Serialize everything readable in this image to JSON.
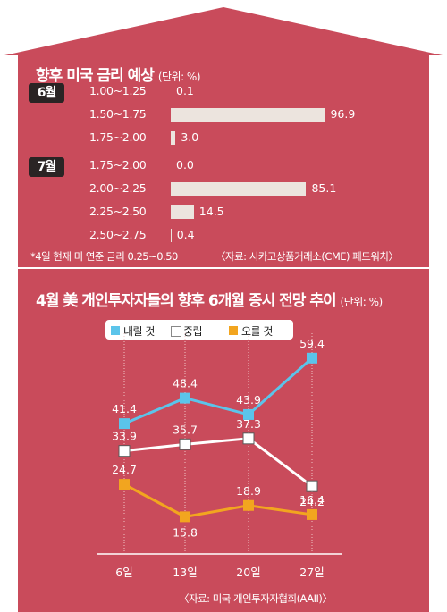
{
  "colors": {
    "background": "#c94b5b",
    "bar": "#ece4de",
    "series": [
      "#5bc4ea",
      "#ffffff",
      "#f2a51f"
    ]
  },
  "top_section": {
    "title": "향후 미국 금리 예상",
    "unit": "(단위: %)",
    "groups": [
      {
        "label": "6월",
        "rows": [
          {
            "range": "1.00~1.25",
            "value": 0.1,
            "value_label": "0.1"
          },
          {
            "range": "1.50~1.75",
            "value": 96.9,
            "value_label": "96.9"
          },
          {
            "range": "1.75~2.00",
            "value": 3.0,
            "value_label": "3.0"
          }
        ]
      },
      {
        "label": "7월",
        "rows": [
          {
            "range": "1.75~2.00",
            "value": 0.0,
            "value_label": "0.0"
          },
          {
            "range": "2.00~2.25",
            "value": 85.1,
            "value_label": "85.1"
          },
          {
            "range": "2.25~2.50",
            "value": 14.5,
            "value_label": "14.5"
          },
          {
            "range": "2.50~2.75",
            "value": 0.4,
            "value_label": "0.4"
          }
        ]
      }
    ],
    "footnote": "*4일 현재 미 연준 금리 0.25~0.50",
    "source": "〈자료: 시카고상품거래소(CME) 페드워치〉"
  },
  "bottom_section": {
    "title": "4월 美 개인투자자들의 향후 6개월 증시 전망 추이",
    "unit": "(단위: %)",
    "source": "〈자료: 미국 개인투자자협회(AAII)〉"
  },
  "chart_data": [
    {
      "type": "bar",
      "orientation": "horizontal",
      "title": "향후 미국 금리 예상",
      "unit": "(단위: %)",
      "groups": [
        "6월",
        "7월"
      ],
      "categories": [
        [
          "1.00~1.25",
          "1.50~1.75",
          "1.75~2.00"
        ],
        [
          "1.75~2.00",
          "2.00~2.25",
          "2.25~2.50",
          "2.50~2.75"
        ]
      ],
      "values": [
        [
          0.1,
          96.9,
          3.0
        ],
        [
          0.0,
          85.1,
          14.5,
          0.4
        ]
      ]
    },
    {
      "type": "line",
      "title": "4월 美 개인투자자들의 향후 6개월 증시 전망 추이",
      "unit": "(단위: %)",
      "x": [
        "6일",
        "13일",
        "20일",
        "27일"
      ],
      "ylim": [
        10,
        65
      ],
      "series": [
        {
          "name": "내릴 것",
          "values": [
            41.4,
            48.4,
            43.9,
            59.4
          ],
          "labels": [
            "41.4",
            "48.4",
            "43.9",
            "59.4"
          ],
          "color": "#5bc4ea"
        },
        {
          "name": "중립",
          "values": [
            33.9,
            35.7,
            37.3,
            24.2
          ],
          "labels": [
            "33.9",
            "35.7",
            "37.3",
            "24.2"
          ],
          "color": "#ffffff"
        },
        {
          "name": "오를 것",
          "values": [
            24.7,
            15.8,
            18.9,
            16.4
          ],
          "labels": [
            "24.7",
            "15.8",
            "18.9",
            "16.4"
          ],
          "color": "#f2a51f"
        }
      ],
      "legend_position": "top-left"
    }
  ]
}
